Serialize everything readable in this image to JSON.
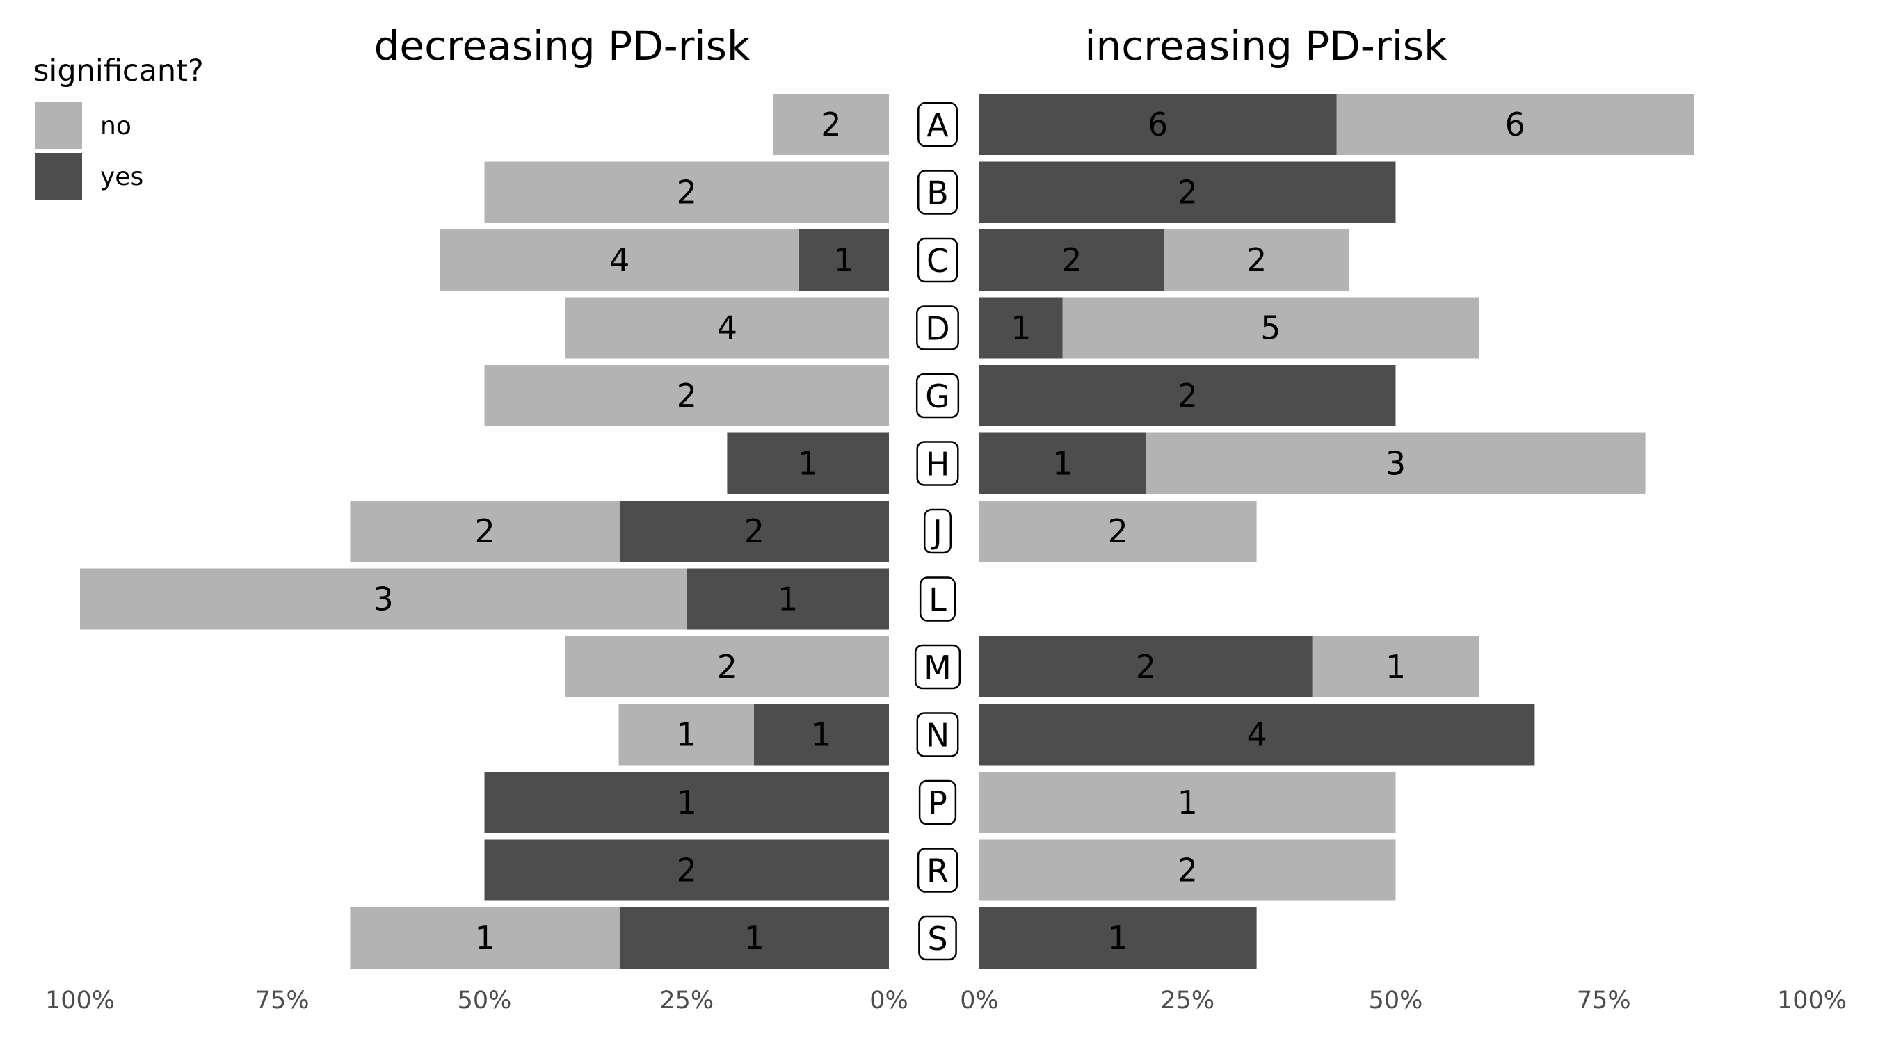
{
  "chart_data": {
    "type": "bar",
    "layout": "diverging-stacked-horizontal",
    "value_unit": "percent",
    "legend": {
      "title": "significant?",
      "placement": "top-left",
      "items": [
        {
          "key": "no",
          "label": "no",
          "color": "#b3b3b3"
        },
        {
          "key": "yes",
          "label": "yes",
          "color": "#4d4d4d"
        }
      ]
    },
    "categories": [
      "A",
      "B",
      "C",
      "D",
      "G",
      "H",
      "J",
      "L",
      "M",
      "N",
      "P",
      "R",
      "S"
    ],
    "panels": [
      {
        "title": "decreasing PD-risk",
        "direction": "left",
        "xlim": [
          0,
          100
        ],
        "ticks": [
          100,
          75,
          50,
          25,
          0
        ],
        "tick_labels": [
          "100%",
          "75%",
          "50%",
          "25%",
          "0%"
        ],
        "stack_order_from_center": [
          "yes",
          "no"
        ],
        "rows": [
          {
            "category": "A",
            "no": {
              "pct": 14.3,
              "count": "2"
            },
            "yes": {
              "pct": 0,
              "count": ""
            }
          },
          {
            "category": "B",
            "no": {
              "pct": 50,
              "count": "2"
            },
            "yes": {
              "pct": 0,
              "count": ""
            }
          },
          {
            "category": "C",
            "no": {
              "pct": 44.4,
              "count": "4"
            },
            "yes": {
              "pct": 11.1,
              "count": "1"
            }
          },
          {
            "category": "D",
            "no": {
              "pct": 40,
              "count": "4"
            },
            "yes": {
              "pct": 0,
              "count": ""
            }
          },
          {
            "category": "G",
            "no": {
              "pct": 50,
              "count": "2"
            },
            "yes": {
              "pct": 0,
              "count": ""
            }
          },
          {
            "category": "H",
            "no": {
              "pct": 0,
              "count": ""
            },
            "yes": {
              "pct": 20,
              "count": "1"
            }
          },
          {
            "category": "J",
            "no": {
              "pct": 33.3,
              "count": "2"
            },
            "yes": {
              "pct": 33.3,
              "count": "2"
            }
          },
          {
            "category": "L",
            "no": {
              "pct": 75,
              "count": "3"
            },
            "yes": {
              "pct": 25,
              "count": "1"
            }
          },
          {
            "category": "M",
            "no": {
              "pct": 40,
              "count": "2"
            },
            "yes": {
              "pct": 0,
              "count": ""
            }
          },
          {
            "category": "N",
            "no": {
              "pct": 16.7,
              "count": "1"
            },
            "yes": {
              "pct": 16.7,
              "count": "1"
            }
          },
          {
            "category": "P",
            "no": {
              "pct": 0,
              "count": ""
            },
            "yes": {
              "pct": 50,
              "count": "1"
            }
          },
          {
            "category": "R",
            "no": {
              "pct": 0,
              "count": ""
            },
            "yes": {
              "pct": 50,
              "count": "2"
            }
          },
          {
            "category": "S",
            "no": {
              "pct": 33.3,
              "count": "1"
            },
            "yes": {
              "pct": 33.3,
              "count": "1"
            }
          }
        ]
      },
      {
        "title": "increasing PD-risk",
        "direction": "right",
        "xlim": [
          0,
          100
        ],
        "ticks": [
          0,
          25,
          50,
          75,
          100
        ],
        "tick_labels": [
          "0%",
          "25%",
          "50%",
          "75%",
          "100%"
        ],
        "stack_order_from_center": [
          "yes",
          "no"
        ],
        "rows": [
          {
            "category": "A",
            "no": {
              "pct": 42.9,
              "count": "6"
            },
            "yes": {
              "pct": 42.9,
              "count": "6"
            }
          },
          {
            "category": "B",
            "no": {
              "pct": 0,
              "count": ""
            },
            "yes": {
              "pct": 50,
              "count": "2"
            }
          },
          {
            "category": "C",
            "no": {
              "pct": 22.2,
              "count": "2"
            },
            "yes": {
              "pct": 22.2,
              "count": "2"
            }
          },
          {
            "category": "D",
            "no": {
              "pct": 50,
              "count": "5"
            },
            "yes": {
              "pct": 10,
              "count": "1"
            }
          },
          {
            "category": "G",
            "no": {
              "pct": 0,
              "count": ""
            },
            "yes": {
              "pct": 50,
              "count": "2"
            }
          },
          {
            "category": "H",
            "no": {
              "pct": 60,
              "count": "3"
            },
            "yes": {
              "pct": 20,
              "count": "1"
            }
          },
          {
            "category": "J",
            "no": {
              "pct": 33.3,
              "count": "2"
            },
            "yes": {
              "pct": 0,
              "count": ""
            }
          },
          {
            "category": "L",
            "no": {
              "pct": 0,
              "count": ""
            },
            "yes": {
              "pct": 0,
              "count": ""
            }
          },
          {
            "category": "M",
            "no": {
              "pct": 20,
              "count": "1"
            },
            "yes": {
              "pct": 40,
              "count": "2"
            }
          },
          {
            "category": "N",
            "no": {
              "pct": 0,
              "count": ""
            },
            "yes": {
              "pct": 66.7,
              "count": "4"
            }
          },
          {
            "category": "P",
            "no": {
              "pct": 50,
              "count": "1"
            },
            "yes": {
              "pct": 0,
              "count": ""
            }
          },
          {
            "category": "R",
            "no": {
              "pct": 50,
              "count": "2"
            },
            "yes": {
              "pct": 0,
              "count": ""
            }
          },
          {
            "category": "S",
            "no": {
              "pct": 0,
              "count": ""
            },
            "yes": {
              "pct": 33.3,
              "count": "1"
            }
          }
        ]
      }
    ],
    "grid": false
  }
}
